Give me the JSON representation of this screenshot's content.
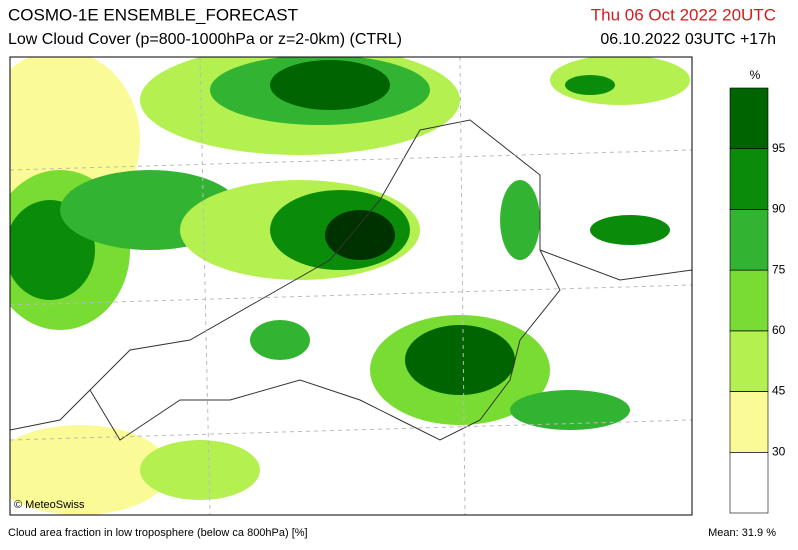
{
  "header": {
    "title": "COSMO-1E ENSEMBLE_FORECAST",
    "subtitle": "Low Cloud Cover (p=800-1000hPa or z=2-0km) (CTRL)",
    "valid_time": "Thu 06 Oct 2022 20UTC",
    "run_time": "06.10.2022 03UTC +17h"
  },
  "legend": {
    "unit": "%",
    "ticks": [
      30,
      45,
      60,
      75,
      90,
      95
    ],
    "colors": [
      "#ffffff",
      "#fafa96",
      "#b4f050",
      "#78dc32",
      "#32b432",
      "#0a8c0a",
      "#006400",
      "#003200"
    ]
  },
  "map": {
    "copyright": "© MeteoSwiss"
  },
  "footer": {
    "caption": "Cloud area fraction in low troposphere (below ca 800hPa) [%]",
    "mean": "Mean:  31.9 %"
  }
}
